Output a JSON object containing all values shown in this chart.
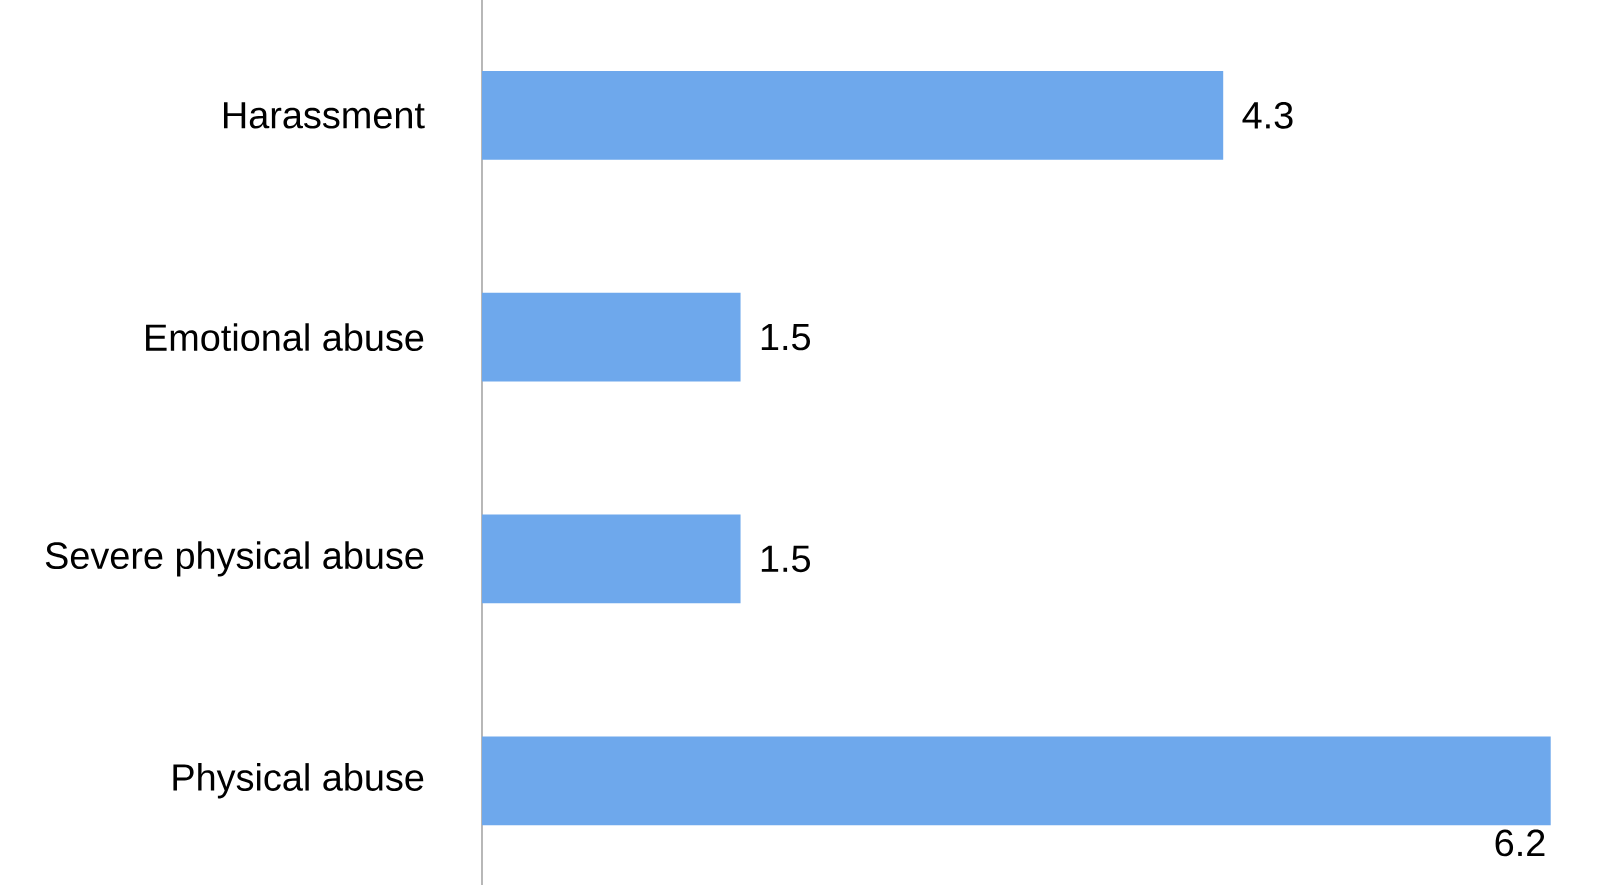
{
  "chart_data": {
    "type": "bar",
    "orientation": "horizontal",
    "categories": [
      "Harassment",
      "Emotional abuse",
      "Severe physical abuse",
      "Physical abuse"
    ],
    "values": [
      4.3,
      1.5,
      1.5,
      6.2
    ],
    "color": "#6ea8ec",
    "data_labels": true
  }
}
